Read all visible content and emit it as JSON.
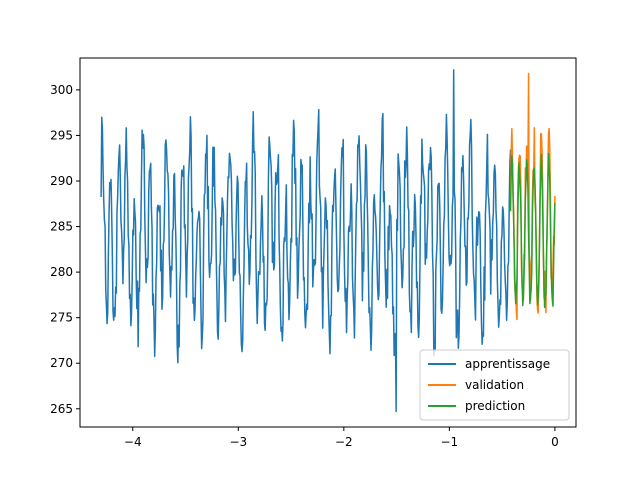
{
  "chart_data": {
    "type": "line",
    "title": "",
    "xlabel": "",
    "ylabel": "",
    "xlim": [
      -4.5,
      0.2
    ],
    "ylim": [
      263,
      303.5
    ],
    "x_ticks": [
      -4,
      -3,
      -2,
      -1,
      0
    ],
    "x_tick_labels": [
      "−4",
      "−3",
      "−2",
      "−1",
      "0"
    ],
    "y_ticks": [
      265,
      270,
      275,
      280,
      285,
      290,
      295,
      300
    ],
    "y_tick_labels": [
      "265",
      "270",
      "275",
      "280",
      "285",
      "290",
      "295",
      "300"
    ],
    "grid": false,
    "legend_position": "lower-right",
    "series": [
      {
        "name": "apprentissage",
        "color": "#1f77b4",
        "x_range": [
          -4.3,
          -0.42
        ],
        "points": 620,
        "mean": 284,
        "min": 264.7,
        "max": 302.2
      },
      {
        "name": "validation",
        "color": "#ff7f0e",
        "x_range": [
          -0.42,
          0.0
        ],
        "points": 70,
        "mean": 285,
        "min": 274.8,
        "max": 301.8
      },
      {
        "name": "prediction",
        "color": "#2ca02c",
        "x_range": [
          -0.42,
          0.0
        ],
        "points": 70,
        "mean": 284,
        "min": 275.6,
        "max": 293.6
      }
    ]
  }
}
